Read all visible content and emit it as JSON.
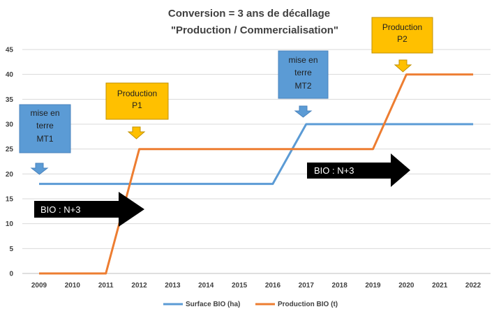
{
  "chart_data": {
    "type": "line",
    "title_line1": "Conversion = 3 ans de décallage",
    "title_line2": "\"Production / Commercialisation\"",
    "x": [
      "2009",
      "2010",
      "2011",
      "2012",
      "2013",
      "2014",
      "2015",
      "2016",
      "2017",
      "2018",
      "2019",
      "2020",
      "2021",
      "2022"
    ],
    "ylim": [
      0,
      45
    ],
    "yticks": [
      0,
      5,
      10,
      15,
      20,
      25,
      30,
      35,
      40,
      45
    ],
    "grid": "horizontal",
    "legend_position": "bottom",
    "series": [
      {
        "name": "Surface BIO (ha)",
        "color": "#5b9bd5",
        "points": [
          [
            2009,
            18
          ],
          [
            2016,
            18
          ],
          [
            2017,
            30
          ],
          [
            2022,
            30
          ]
        ]
      },
      {
        "name": "Production BIO (t)",
        "color": "#ed7d31",
        "points": [
          [
            2009,
            0
          ],
          [
            2011,
            0
          ],
          [
            2012,
            25
          ],
          [
            2019,
            25
          ],
          [
            2020,
            40
          ],
          [
            2022,
            40
          ]
        ]
      }
    ],
    "annotations": {
      "mt1": {
        "lines": [
          "mise en",
          "terre",
          "MT1"
        ],
        "color": "#5b9bd5"
      },
      "p1": {
        "lines": [
          "Production",
          "P1"
        ],
        "color": "#ffc000"
      },
      "mt2": {
        "lines": [
          "mise en",
          "terre",
          "MT2"
        ],
        "color": "#5b9bd5"
      },
      "p2": {
        "lines": [
          "Production",
          "P2"
        ],
        "color": "#ffc000"
      },
      "bio1": {
        "text": "BIO : N+3"
      },
      "bio2": {
        "text": "BIO : N+3"
      }
    }
  }
}
